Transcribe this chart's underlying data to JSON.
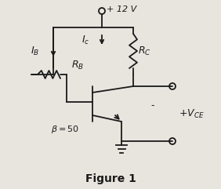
{
  "title": "Figure 1",
  "title_fontsize": 10,
  "background_color": "#e8e5df",
  "line_color": "#1a1a1a",
  "vcc_label": "+ 12 V",
  "ib_label": "$I_B$",
  "ic_label": "$I_c$",
  "rb_label": "$R_B$",
  "rc_label": "$R_C$",
  "beta_label": "$\\beta = 50$",
  "vce_label": "$+V_{CE}$",
  "minus_label": "-",
  "figsize": [
    2.82,
    2.41
  ],
  "dpi": 100
}
